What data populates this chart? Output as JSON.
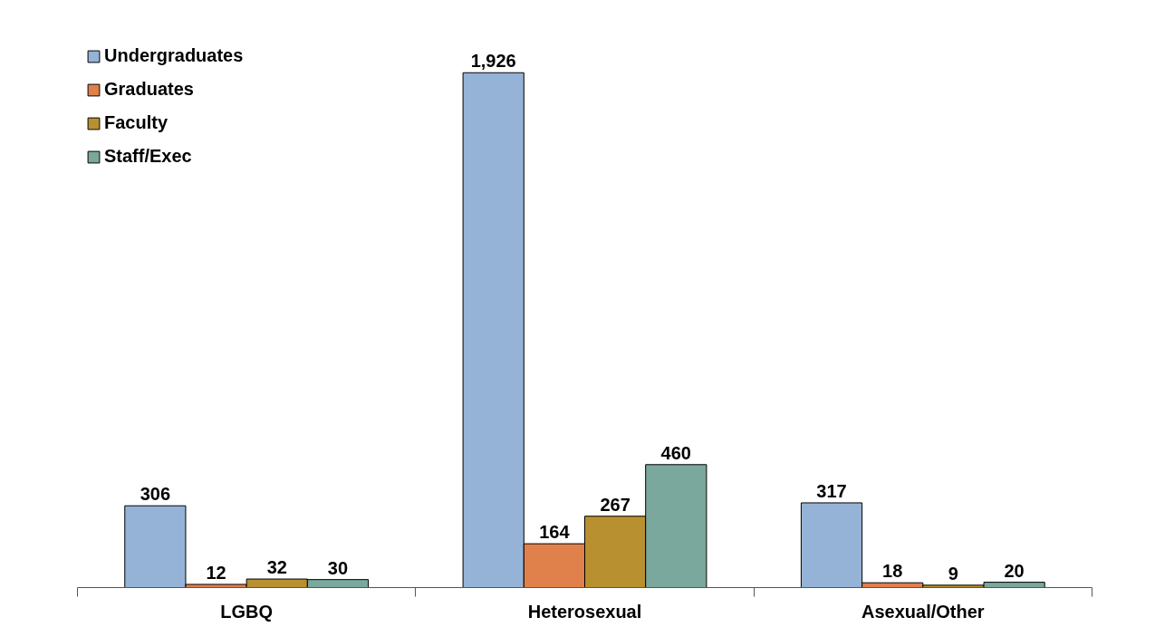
{
  "chart_data": {
    "type": "bar",
    "categories": [
      "LGBQ",
      "Heterosexual",
      "Asexual/Other"
    ],
    "series": [
      {
        "name": "Undergraduates",
        "color": "#95b3d7",
        "values": [
          306,
          1926,
          317
        ],
        "value_labels": [
          "306",
          "1,926",
          "317"
        ]
      },
      {
        "name": "Graduates",
        "color": "#e0804a",
        "values": [
          12,
          164,
          18
        ],
        "value_labels": [
          "12",
          "164",
          "18"
        ]
      },
      {
        "name": "Faculty",
        "color": "#b8902f",
        "values": [
          32,
          267,
          9
        ],
        "value_labels": [
          "32",
          "267",
          "9"
        ]
      },
      {
        "name": "Staff/Exec",
        "color": "#7aa89c",
        "values": [
          30,
          460,
          20
        ],
        "value_labels": [
          "30",
          "460",
          "20"
        ]
      }
    ],
    "legend": "top left",
    "grid": false,
    "tick_labels": "x"
  }
}
